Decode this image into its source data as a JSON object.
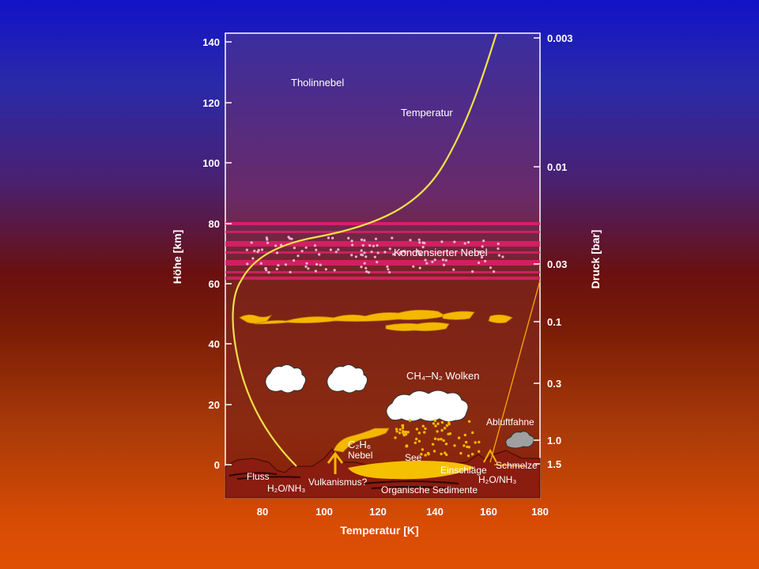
{
  "chart": {
    "left_axis": {
      "title": "Höhe [km]",
      "ticks": [
        "140",
        "120",
        "100",
        "80",
        "60",
        "40",
        "20",
        "0"
      ]
    },
    "right_axis": {
      "title": "Druck [bar]",
      "ticks": [
        "0.003",
        "0.01",
        "0.03",
        "0.1",
        "0.3",
        "1.0",
        "1.5"
      ]
    },
    "bottom_axis": {
      "title": "Temperatur [K]",
      "ticks": [
        "80",
        "100",
        "120",
        "140",
        "160",
        "180"
      ]
    },
    "labels": {
      "tholin": "Tholinnebel",
      "temperature": "Temperatur",
      "condensed": "Kondensierter Nebel",
      "clouds": "CH₄–N₂ Wolken",
      "c2h6": "C₂H₆",
      "nebel": "Nebel",
      "see": "See",
      "abluftfahne": "Abluftfahne",
      "fluss": "Fluss",
      "h2o_left": "H₂O/NH₃",
      "vulkanismus": "Vulkanismus?",
      "einschlaege": "Einschläge",
      "schmelze": "Schmelze",
      "h2o_right": "H₂O/NH₃",
      "sedimente": "Organische Sedimente"
    },
    "colors": {
      "temperature_curve": "#f2e04a",
      "haze_band": "#e0206a",
      "cloud_yellow": "#f5b800",
      "ground": "#8a1c10"
    }
  }
}
